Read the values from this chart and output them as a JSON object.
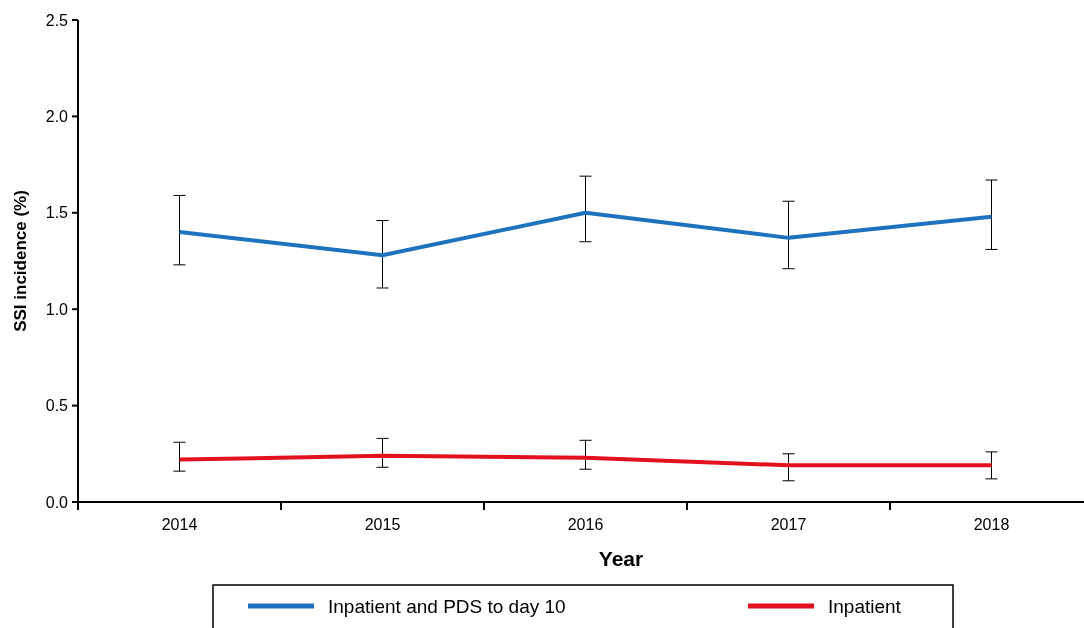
{
  "chart_data": {
    "type": "line",
    "xlabel": "Year",
    "ylabel": "SSI incidence (%)",
    "categories": [
      "2014",
      "2015",
      "2016",
      "2017",
      "2018"
    ],
    "series": [
      {
        "name": "Inpatient and PDS to day 10",
        "color": "#1f73be",
        "values": [
          1.4,
          1.28,
          1.5,
          1.37,
          1.48
        ],
        "errors": [
          [
            1.23,
            1.59
          ],
          [
            1.11,
            1.46
          ],
          [
            1.35,
            1.69
          ],
          [
            1.21,
            1.56
          ],
          [
            1.31,
            1.67
          ]
        ]
      },
      {
        "name": "Inpatient",
        "color": "#e3101e",
        "values": [
          0.22,
          0.24,
          0.23,
          0.19,
          0.19
        ],
        "errors": [
          [
            0.16,
            0.31
          ],
          [
            0.18,
            0.33
          ],
          [
            0.17,
            0.32
          ],
          [
            0.11,
            0.25
          ],
          [
            0.12,
            0.26
          ]
        ]
      }
    ],
    "ylim": [
      0,
      2.5
    ],
    "yticks": [
      {
        "value": 0,
        "label": "0.0"
      },
      {
        "value": 0.5,
        "label": "0.5"
      },
      {
        "value": 1,
        "label": "1.0"
      },
      {
        "value": 1.5,
        "label": "1.5"
      },
      {
        "value": 2,
        "label": "2.0"
      },
      {
        "value": 2.5,
        "label": "2.5"
      }
    ],
    "legend": "bottom",
    "grid": false,
    "marker": "none",
    "line_style": "solid"
  }
}
